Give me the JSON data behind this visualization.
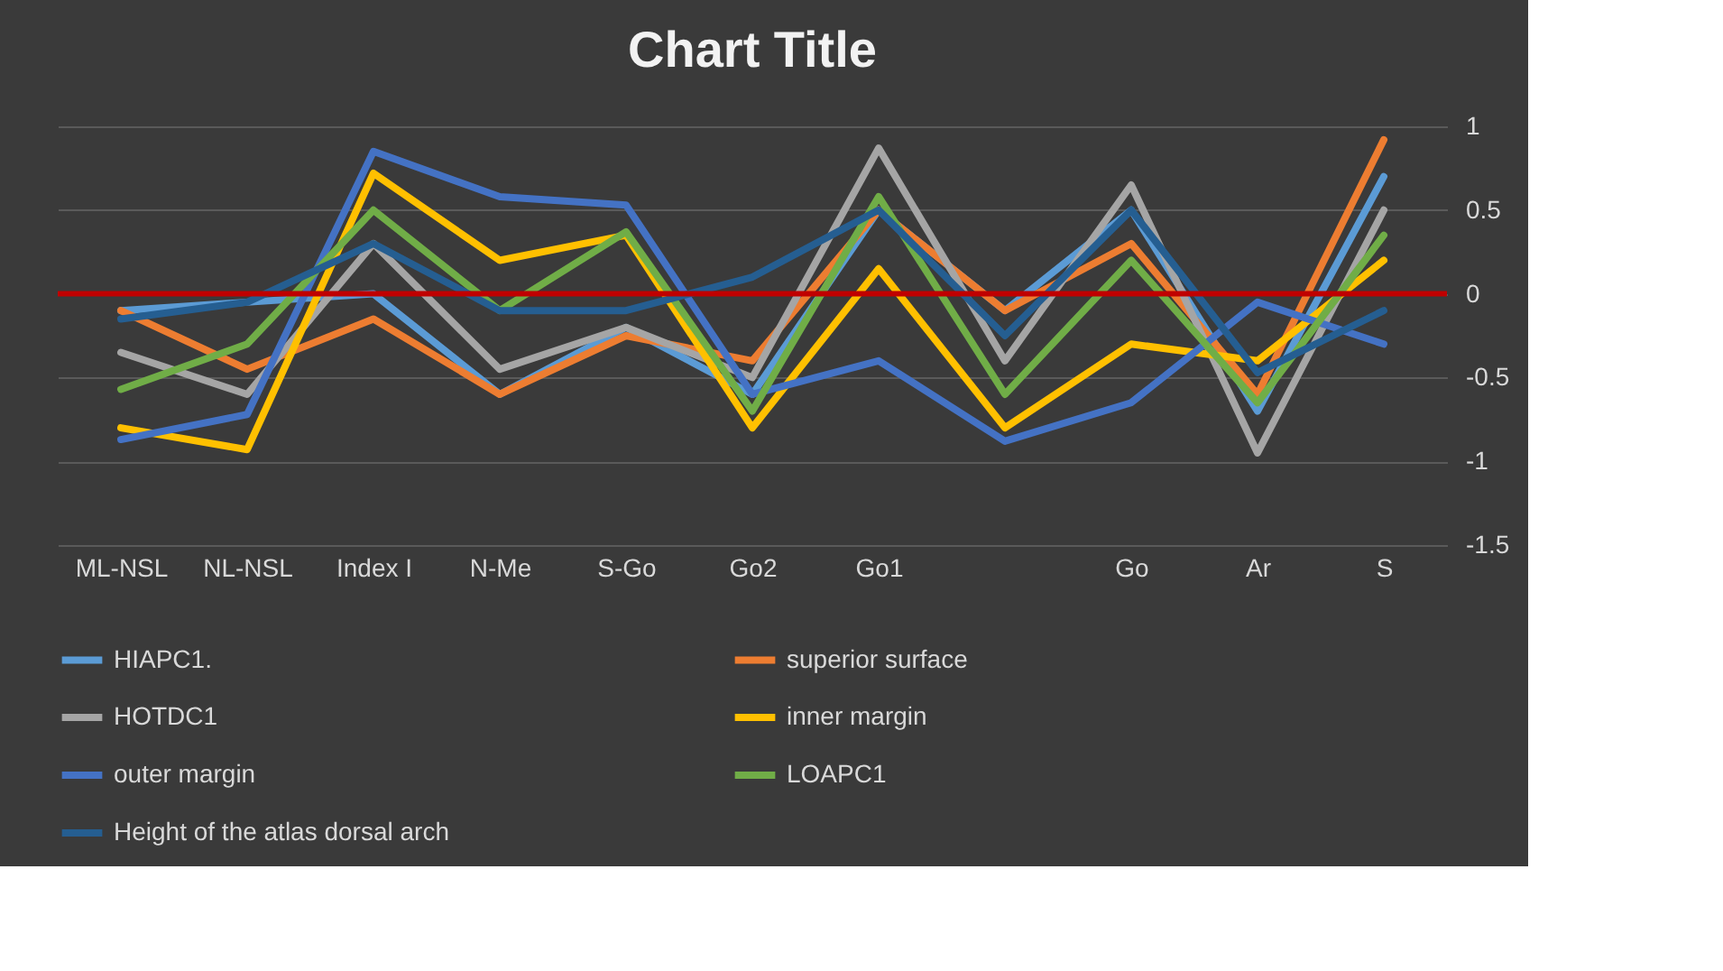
{
  "chart_data": {
    "type": "line",
    "title": "Chart Title",
    "categories": [
      "ML-NSL",
      "NL-NSL",
      "Index I",
      "N-Me",
      "S-Go",
      "Go2",
      "Go1",
      null,
      "Go",
      "Ar",
      "S"
    ],
    "series": [
      {
        "name": "HIAPC1.",
        "color": "#5b9bd5",
        "values": [
          -0.1,
          -0.05,
          0.0,
          -0.6,
          -0.2,
          -0.6,
          0.5,
          -0.1,
          0.5,
          -0.7,
          0.7
        ]
      },
      {
        "name": "superior surface",
        "color": "#ed7d31",
        "values": [
          -0.1,
          -0.45,
          -0.15,
          -0.6,
          -0.25,
          -0.4,
          0.5,
          -0.1,
          0.3,
          -0.6,
          0.92
        ]
      },
      {
        "name": "HOTDC1",
        "color": "#a5a5a5",
        "values": [
          -0.35,
          -0.6,
          0.3,
          -0.45,
          -0.2,
          -0.5,
          0.87,
          -0.4,
          0.65,
          -0.95,
          0.5
        ]
      },
      {
        "name": "inner margin",
        "color": "#ffc000",
        "values": [
          -0.8,
          -0.93,
          0.72,
          0.2,
          0.35,
          -0.8,
          0.15,
          -0.8,
          -0.3,
          -0.4,
          0.2
        ]
      },
      {
        "name": "outer margin",
        "color": "#4472c4",
        "values": [
          -0.87,
          -0.72,
          0.85,
          0.58,
          0.53,
          -0.6,
          -0.4,
          -0.88,
          -0.65,
          -0.05,
          -0.3
        ]
      },
      {
        "name": "LOAPC1",
        "color": "#70ad47",
        "values": [
          -0.57,
          -0.3,
          0.5,
          -0.1,
          0.37,
          -0.7,
          0.58,
          -0.6,
          0.2,
          -0.65,
          0.35
        ]
      },
      {
        "name": "Height of the atlas dorsal arch",
        "color": "#255e91",
        "values": [
          -0.15,
          -0.05,
          0.3,
          -0.1,
          -0.1,
          0.1,
          0.5,
          -0.25,
          0.5,
          -0.47,
          -0.1
        ]
      }
    ],
    "ylim": [
      -1.5,
      1
    ],
    "yticks": [
      -1.5,
      -1,
      -0.5,
      0,
      0.5,
      1
    ],
    "grid": "y",
    "legend": "bottom",
    "line_style": "solid",
    "ref_lines": [
      {
        "axis": "y",
        "value": 0,
        "color": "#c00000"
      }
    ]
  }
}
